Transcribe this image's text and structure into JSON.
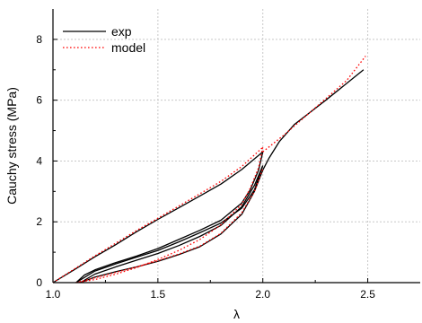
{
  "chart_data": {
    "type": "line",
    "title": "",
    "xlabel": "λ",
    "ylabel": "Cauchy stress (MPa)",
    "xlim": [
      1.0,
      2.75
    ],
    "ylim": [
      0,
      9
    ],
    "xticks": [
      1.0,
      1.5,
      2.0,
      2.5
    ],
    "xtick_labels": [
      "1.0",
      "1.5",
      "2.0",
      "2.5"
    ],
    "yticks": [
      0,
      2,
      4,
      6,
      8
    ],
    "ytick_labels": [
      "0",
      "2",
      "4",
      "6",
      "8"
    ],
    "grid": true,
    "legend_position": "top-left",
    "series": [
      {
        "name": "exp",
        "color": "#000000",
        "style": "solid",
        "segments": [
          [
            [
              1.0,
              0.0
            ],
            [
              1.1,
              0.42
            ],
            [
              1.2,
              0.85
            ],
            [
              1.3,
              1.25
            ],
            [
              1.4,
              1.68
            ],
            [
              1.5,
              2.08
            ],
            [
              1.6,
              2.46
            ],
            [
              1.7,
              2.85
            ],
            [
              1.8,
              3.24
            ],
            [
              1.9,
              3.72
            ],
            [
              2.0,
              4.3
            ]
          ],
          [
            [
              2.0,
              4.3
            ],
            [
              1.98,
              3.7
            ],
            [
              1.94,
              3.05
            ],
            [
              1.9,
              2.62
            ],
            [
              1.8,
              2.05
            ],
            [
              1.7,
              1.72
            ],
            [
              1.6,
              1.42
            ],
            [
              1.5,
              1.12
            ],
            [
              1.4,
              0.88
            ],
            [
              1.3,
              0.66
            ],
            [
              1.2,
              0.42
            ],
            [
              1.15,
              0.25
            ],
            [
              1.11,
              0.0
            ]
          ],
          [
            [
              1.11,
              0.0
            ],
            [
              1.2,
              0.38
            ],
            [
              1.3,
              0.62
            ],
            [
              1.4,
              0.84
            ],
            [
              1.5,
              1.06
            ],
            [
              1.6,
              1.34
            ],
            [
              1.7,
              1.64
            ],
            [
              1.8,
              1.96
            ],
            [
              1.9,
              2.45
            ],
            [
              1.96,
              3.05
            ],
            [
              2.0,
              3.85
            ]
          ],
          [
            [
              2.0,
              3.85
            ],
            [
              1.96,
              3.2
            ],
            [
              1.9,
              2.5
            ],
            [
              1.8,
              1.88
            ],
            [
              1.7,
              1.52
            ],
            [
              1.6,
              1.22
            ],
            [
              1.5,
              0.96
            ],
            [
              1.4,
              0.74
            ],
            [
              1.3,
              0.52
            ],
            [
              1.2,
              0.28
            ],
            [
              1.13,
              0.0
            ]
          ],
          [
            [
              1.13,
              0.0
            ],
            [
              1.2,
              0.18
            ],
            [
              1.3,
              0.36
            ],
            [
              1.4,
              0.52
            ],
            [
              1.5,
              0.7
            ],
            [
              1.6,
              0.92
            ],
            [
              1.7,
              1.18
            ],
            [
              1.8,
              1.6
            ],
            [
              1.9,
              2.25
            ],
            [
              1.96,
              3.0
            ],
            [
              2.0,
              3.7
            ],
            [
              2.03,
              4.1
            ],
            [
              2.08,
              4.65
            ],
            [
              2.15,
              5.2
            ],
            [
              2.3,
              6.0
            ],
            [
              2.48,
              7.0
            ]
          ]
        ]
      },
      {
        "name": "model",
        "color": "#ff0000",
        "style": "dotted",
        "segments": [
          [
            [
              1.0,
              0.0
            ],
            [
              1.1,
              0.44
            ],
            [
              1.2,
              0.88
            ],
            [
              1.3,
              1.3
            ],
            [
              1.4,
              1.72
            ],
            [
              1.5,
              2.12
            ],
            [
              1.6,
              2.52
            ],
            [
              1.7,
              2.92
            ],
            [
              1.8,
              3.33
            ],
            [
              1.9,
              3.82
            ],
            [
              2.0,
              4.45
            ]
          ],
          [
            [
              2.0,
              4.45
            ],
            [
              1.98,
              3.78
            ],
            [
              1.94,
              3.1
            ],
            [
              1.9,
              2.58
            ],
            [
              1.8,
              1.9
            ],
            [
              1.7,
              1.42
            ],
            [
              1.6,
              1.06
            ],
            [
              1.5,
              0.76
            ],
            [
              1.4,
              0.5
            ],
            [
              1.3,
              0.28
            ],
            [
              1.2,
              0.1
            ],
            [
              1.11,
              0.0
            ]
          ],
          [
            [
              1.11,
              0.0
            ],
            [
              1.2,
              0.16
            ],
            [
              1.3,
              0.34
            ],
            [
              1.4,
              0.52
            ],
            [
              1.5,
              0.72
            ],
            [
              1.6,
              0.94
            ],
            [
              1.7,
              1.2
            ],
            [
              1.8,
              1.62
            ],
            [
              1.9,
              2.3
            ],
            [
              1.96,
              3.0
            ],
            [
              2.0,
              3.75
            ]
          ],
          [
            [
              2.0,
              4.3
            ],
            [
              2.1,
              4.85
            ],
            [
              2.2,
              5.45
            ],
            [
              2.3,
              6.05
            ],
            [
              2.4,
              6.65
            ],
            [
              2.49,
              7.45
            ]
          ]
        ]
      }
    ]
  }
}
